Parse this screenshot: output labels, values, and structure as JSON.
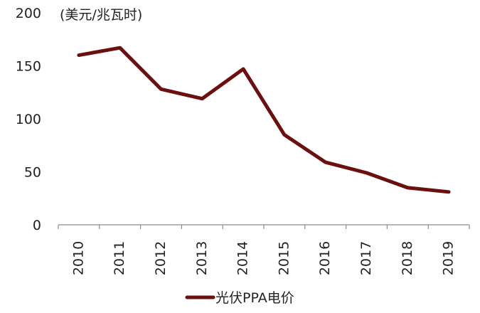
{
  "chart_data": {
    "type": "line",
    "title": "",
    "ylabel": "(美元/兆瓦时)",
    "xlabel": "",
    "categories": [
      "2010",
      "2011",
      "2012",
      "2013",
      "2014",
      "2015",
      "2016",
      "2017",
      "2018",
      "2019"
    ],
    "series": [
      {
        "name": "光伏PPA电价",
        "values": [
          160,
          167,
          128,
          119,
          147,
          85,
          59,
          49,
          35,
          31
        ],
        "color": "#6b0f0f"
      }
    ],
    "ylim": [
      0,
      200
    ],
    "yticks": [
      "0",
      "50",
      "100",
      "150",
      "200"
    ],
    "grid": false,
    "legend_position": "bottom-center"
  }
}
